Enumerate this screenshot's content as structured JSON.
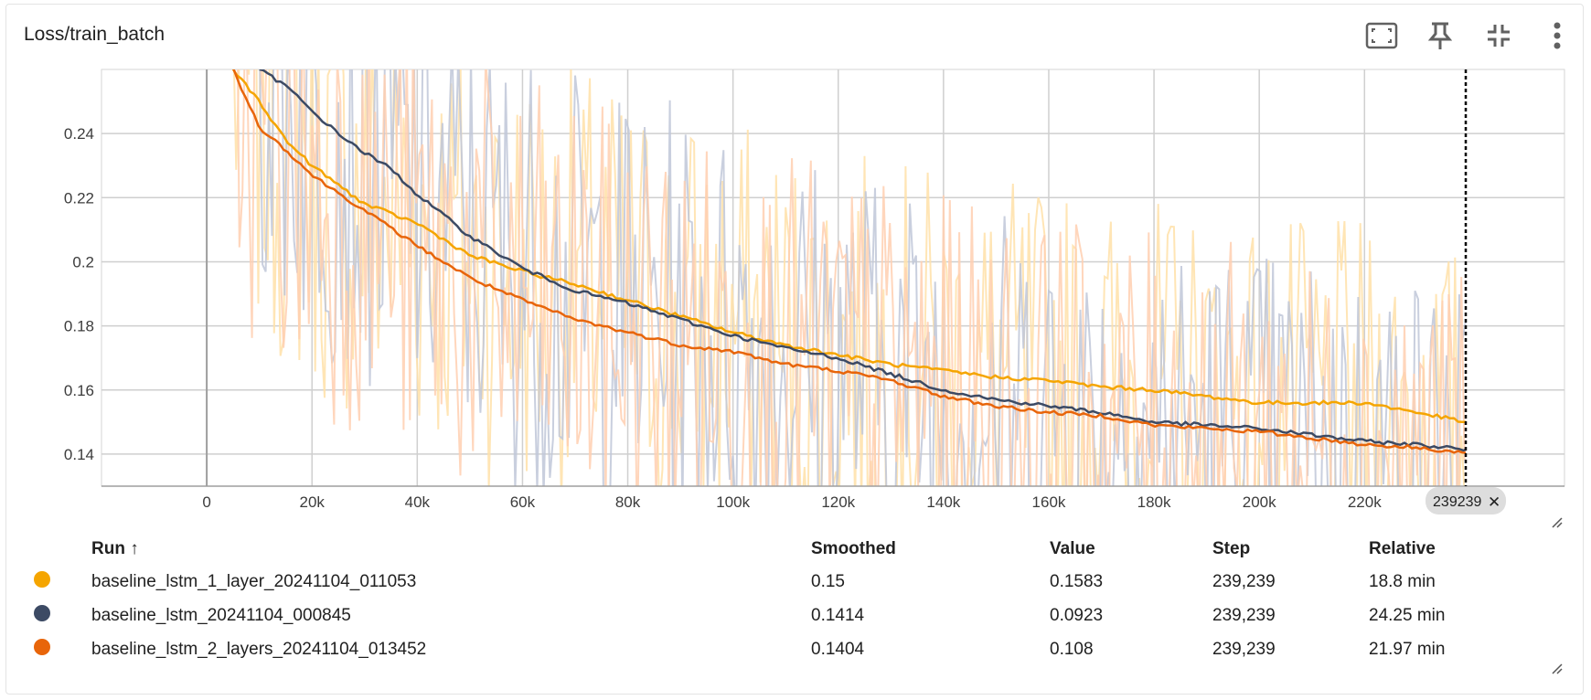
{
  "card": {
    "title": "Loss/train_batch",
    "toolbar": [
      {
        "icon": "fit-to-view-icon"
      },
      {
        "icon": "pin-icon"
      },
      {
        "icon": "collapse-icon"
      },
      {
        "icon": "more-vert-icon"
      }
    ]
  },
  "chart_data": {
    "type": "line",
    "title": "Loss/train_batch",
    "xlabel": "",
    "ylabel": "",
    "xlim": [
      -20000,
      258000
    ],
    "ylim": [
      0.13,
      0.26
    ],
    "x_ticks": [
      "0",
      "20k",
      "40k",
      "60k",
      "80k",
      "100k",
      "120k",
      "140k",
      "160k",
      "180k",
      "200k",
      "220k"
    ],
    "y_ticks": [
      "0.14",
      "0.16",
      "0.18",
      "0.2",
      "0.22",
      "0.24"
    ],
    "grid": true,
    "cursor_step_label": "239239",
    "cursor_step": 239239,
    "series": [
      {
        "name": "baseline_lstm_1_layer_20241104_011053",
        "color": "#f5a500",
        "raw_color": "#ffe0a8",
        "x": [
          5000,
          10000,
          15000,
          20000,
          30000,
          40000,
          50000,
          60000,
          70000,
          80000,
          90000,
          100000,
          110000,
          120000,
          130000,
          140000,
          150000,
          160000,
          170000,
          180000,
          190000,
          200000,
          210000,
          220000,
          230000,
          239239
        ],
        "values": [
          0.26,
          0.25,
          0.238,
          0.23,
          0.218,
          0.212,
          0.202,
          0.197,
          0.193,
          0.188,
          0.183,
          0.178,
          0.174,
          0.171,
          0.168,
          0.166,
          0.164,
          0.163,
          0.161,
          0.16,
          0.158,
          0.156,
          0.156,
          0.156,
          0.153,
          0.15
        ]
      },
      {
        "name": "baseline_lstm_20241104_000845",
        "color": "#3c4a64",
        "raw_color": "#bfc7d8",
        "x": [
          10000,
          15000,
          20000,
          25000,
          30000,
          35000,
          40000,
          50000,
          60000,
          70000,
          80000,
          90000,
          100000,
          110000,
          120000,
          130000,
          140000,
          150000,
          160000,
          170000,
          180000,
          190000,
          200000,
          210000,
          220000,
          230000,
          239239
        ],
        "values": [
          0.26,
          0.255,
          0.247,
          0.24,
          0.234,
          0.229,
          0.221,
          0.208,
          0.198,
          0.191,
          0.187,
          0.182,
          0.177,
          0.173,
          0.17,
          0.165,
          0.16,
          0.157,
          0.155,
          0.153,
          0.15,
          0.149,
          0.148,
          0.146,
          0.144,
          0.143,
          0.1414
        ]
      },
      {
        "name": "baseline_lstm_2_layers_20241104_013452",
        "color": "#e8650a",
        "raw_color": "#ffcfb0",
        "x": [
          5000,
          10000,
          15000,
          20000,
          30000,
          40000,
          50000,
          60000,
          70000,
          80000,
          90000,
          100000,
          110000,
          120000,
          130000,
          140000,
          150000,
          160000,
          170000,
          180000,
          190000,
          200000,
          210000,
          220000,
          230000,
          239239
        ],
        "values": [
          0.26,
          0.242,
          0.235,
          0.227,
          0.216,
          0.205,
          0.195,
          0.188,
          0.182,
          0.178,
          0.174,
          0.172,
          0.168,
          0.166,
          0.163,
          0.158,
          0.155,
          0.153,
          0.152,
          0.149,
          0.148,
          0.147,
          0.145,
          0.143,
          0.142,
          0.1404
        ]
      }
    ]
  },
  "legend": {
    "headers": {
      "run": "Run ↑",
      "smoothed": "Smoothed",
      "value": "Value",
      "step": "Step",
      "relative": "Relative"
    },
    "rows": [
      {
        "color": "#f5a500",
        "run": "baseline_lstm_1_layer_20241104_011053",
        "smoothed": "0.15",
        "value": "0.1583",
        "step": "239,239",
        "relative": "18.8 min"
      },
      {
        "color": "#3c4a64",
        "run": "baseline_lstm_20241104_000845",
        "smoothed": "0.1414",
        "value": "0.0923",
        "step": "239,239",
        "relative": "24.25 min"
      },
      {
        "color": "#e8650a",
        "run": "baseline_lstm_2_layers_20241104_013452",
        "smoothed": "0.1404",
        "value": "0.108",
        "step": "239,239",
        "relative": "21.97 min"
      }
    ]
  }
}
